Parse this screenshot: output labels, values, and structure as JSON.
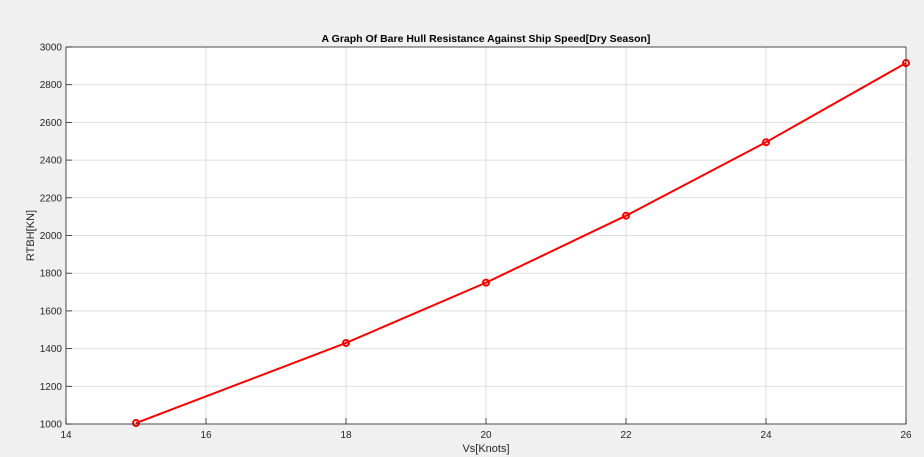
{
  "chart_data": {
    "type": "line",
    "title": "A Graph Of Bare Hull Resistance Against Ship Speed[Dry Season]",
    "xlabel": "Vs[Knots]",
    "ylabel": "RTBH[KN]",
    "xlim": [
      14,
      26
    ],
    "ylim": [
      1000,
      3000
    ],
    "xticks": [
      14,
      16,
      18,
      20,
      22,
      24,
      26
    ],
    "yticks": [
      1000,
      1200,
      1400,
      1600,
      1800,
      2000,
      2200,
      2400,
      2600,
      2800,
      3000
    ],
    "grid": true,
    "series": [
      {
        "color": "#ff0000",
        "marker": "circle",
        "x": [
          15,
          18,
          20,
          22,
          24,
          26
        ],
        "y": [
          1005,
          1430,
          1750,
          2105,
          2495,
          2915
        ]
      }
    ]
  }
}
